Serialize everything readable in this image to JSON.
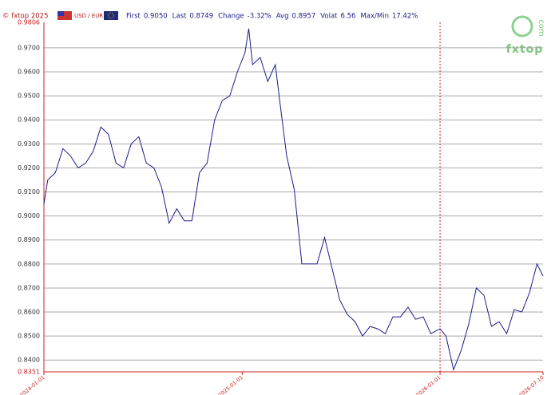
{
  "header": {
    "copyright": "© fxtop 2025",
    "pair": "USD / EUR",
    "stats": [
      {
        "label": "First",
        "value": "0.9050"
      },
      {
        "label": "Last",
        "value": "0.8749"
      },
      {
        "label": "Change",
        "value": "-3.32%"
      },
      {
        "label": "Avg",
        "value": "0.8957"
      },
      {
        "label": "Volat",
        "value": "6.56"
      },
      {
        "label": "Max/Min",
        "value": "17.42%"
      }
    ]
  },
  "logo": {
    "name": "fxtop",
    "suffix": "com"
  },
  "chart_data": {
    "type": "line",
    "color": "#1c1c8c",
    "grid": true,
    "vline": "2026-01-01",
    "x": [
      "2024-01-01",
      "2024-01-08",
      "2024-01-22",
      "2024-02-05",
      "2024-02-19",
      "2024-03-04",
      "2024-03-18",
      "2024-04-01",
      "2024-04-15",
      "2024-04-29",
      "2024-05-13",
      "2024-05-27",
      "2024-06-10",
      "2024-06-24",
      "2024-07-08",
      "2024-07-22",
      "2024-08-05",
      "2024-08-19",
      "2024-09-02",
      "2024-09-16",
      "2024-09-30",
      "2024-10-14",
      "2024-10-28",
      "2024-11-11",
      "2024-11-25",
      "2024-12-09",
      "2024-12-23",
      "2025-01-06",
      "2025-01-13",
      "2025-01-20",
      "2025-02-03",
      "2025-02-17",
      "2025-03-03",
      "2025-03-10",
      "2025-03-24",
      "2025-04-07",
      "2025-04-21",
      "2025-05-05",
      "2025-05-19",
      "2025-06-02",
      "2025-06-16",
      "2025-06-30",
      "2025-07-14",
      "2025-07-28",
      "2025-08-11",
      "2025-08-25",
      "2025-09-08",
      "2025-09-22",
      "2025-10-06",
      "2025-10-20",
      "2025-11-03",
      "2025-11-17",
      "2025-12-01",
      "2025-12-15",
      "2026-01-01",
      "2026-01-12",
      "2026-01-26",
      "2026-02-09",
      "2026-02-23",
      "2026-03-09",
      "2026-03-23",
      "2026-04-06",
      "2026-04-20",
      "2026-05-04",
      "2026-05-18",
      "2026-06-01",
      "2026-06-15",
      "2026-06-29",
      "2026-07-10"
    ],
    "values": [
      0.905,
      0.915,
      0.918,
      0.928,
      0.925,
      0.92,
      0.922,
      0.927,
      0.937,
      0.934,
      0.922,
      0.92,
      0.93,
      0.933,
      0.922,
      0.92,
      0.912,
      0.897,
      0.903,
      0.898,
      0.898,
      0.918,
      0.922,
      0.94,
      0.948,
      0.95,
      0.96,
      0.968,
      0.978,
      0.963,
      0.966,
      0.956,
      0.963,
      0.95,
      0.925,
      0.911,
      0.88,
      0.88,
      0.88,
      0.891,
      0.878,
      0.865,
      0.859,
      0.856,
      0.85,
      0.854,
      0.853,
      0.851,
      0.858,
      0.858,
      0.862,
      0.857,
      0.858,
      0.851,
      0.853,
      0.85,
      0.836,
      0.844,
      0.855,
      0.87,
      0.867,
      0.854,
      0.856,
      0.851,
      0.861,
      0.86,
      0.868,
      0.88,
      0.875
    ],
    "xlim": [
      "2024-01-01",
      "2026-07-10"
    ],
    "xticks": [
      "2024-01-01",
      "2025-01-01",
      "2026-01-01",
      "2026-07-10"
    ],
    "ylim": [
      0.8351,
      0.9806
    ],
    "yticks": [
      0.8351,
      {
        "value": 0.84,
        "label": "0.8400"
      },
      {
        "value": 0.85,
        "label": "0.8500"
      },
      {
        "value": 0.86,
        "label": "0.8600"
      },
      {
        "value": 0.87,
        "label": "0.8700"
      },
      {
        "value": 0.88,
        "label": "0.8800"
      },
      {
        "value": 0.89,
        "label": "0.8900"
      },
      {
        "value": 0.9,
        "label": "0.9000"
      },
      {
        "value": 0.91,
        "label": "0.9100"
      },
      {
        "value": 0.92,
        "label": "0.9200"
      },
      {
        "value": 0.93,
        "label": "0.9300"
      },
      {
        "value": 0.94,
        "label": "0.9400"
      },
      {
        "value": 0.95,
        "label": "0.9500"
      },
      {
        "value": 0.96,
        "label": "0.9600"
      },
      {
        "value": 0.97,
        "label": "0.9700"
      },
      0.9806
    ]
  }
}
